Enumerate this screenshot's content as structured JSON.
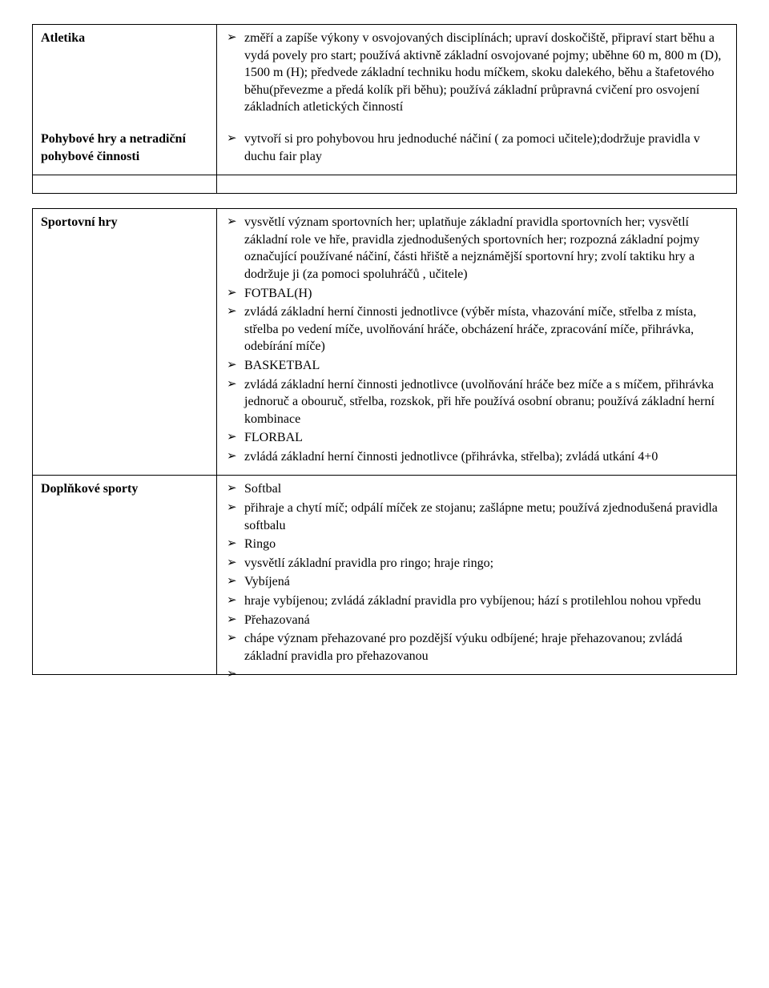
{
  "table1": {
    "rows": [
      {
        "label": "Atletika",
        "items": [
          "změří a zapíše výkony v osvojovaných disciplínách; upraví doskočiště, připraví start běhu a vydá povely pro start; používá aktivně základní osvojované pojmy;  uběhne 60 m, 800 m (D), 1500 m (H); předvede základní techniku hodu míčkem, skoku dalekého,  běhu a štafetového běhu(převezme a předá kolík při běhu); používá základní průpravná cvičení pro osvojení základních atletických činností"
        ]
      },
      {
        "label": "Pohybové hry a netradiční pohybové činnosti",
        "items": [
          "vytvoří si pro pohybovou hru jednoduché náčiní ( za pomoci učitele);dodržuje pravidla  v duchu fair play"
        ]
      }
    ]
  },
  "table2": {
    "rows": [
      {
        "label": "Sportovní hry",
        "items": [
          "vysvětlí význam sportovních her; uplatňuje základní pravidla sportovních her; vysvětlí základní role ve hře, pravidla zjednodušených sportovních her; rozpozná základní pojmy označující používané náčiní, části hřiště a nejznámější sportovní hry; zvolí taktiku hry a dodržuje ji (za pomoci spoluhráčů , učitele)",
          "FOTBAL(H)",
          "zvládá základní herní činnosti jednotlivce (výběr místa, vhazování míče, střelba z místa, střelba po vedení míče, uvolňování hráče, obcházení hráče, zpracování míče, přihrávka, odebírání míče)",
          "BASKETBAL",
          "zvládá základní herní činnosti jednotlivce (uvolňování hráče bez míče a s míčem, přihrávka jednoruč a obouruč, střelba, rozskok, při hře používá osobní obranu; používá základní herní kombinace",
          "FLORBAL",
          "zvládá základní herní činnosti jednotlivce (přihrávka, střelba); zvládá utkání 4+0"
        ]
      },
      {
        "label": "Doplňkové sporty",
        "items": [
          "Softbal",
          "přihraje a chytí míč; odpálí míček ze stojanu; zašlápne metu; používá zjednodušená pravidla softbalu",
          "Ringo",
          "vysvětlí základní pravidla pro ringo; hraje ringo;",
          "Vybíjená",
          "hraje vybíjenou; zvládá základní pravidla pro vybíjenou; hází s protilehlou nohou vpředu",
          "Přehazovaná",
          "chápe význam přehazované pro pozdější výuku odbíjené; hraje přehazovanou; zvládá základní pravidla pro přehazovanou"
        ]
      }
    ]
  }
}
